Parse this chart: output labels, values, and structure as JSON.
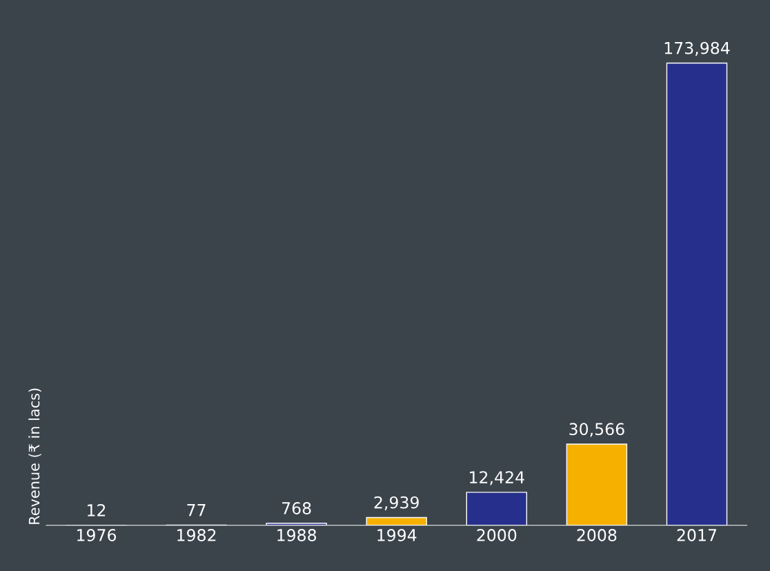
{
  "chart_data": {
    "type": "bar",
    "ylabel": "Revenue (₹ in lacs)",
    "categories": [
      "1976",
      "1982",
      "1988",
      "1994",
      "2000",
      "2008",
      "2017"
    ],
    "values": [
      12,
      77,
      768,
      2939,
      12424,
      30566,
      173984
    ],
    "colors": [
      "#26308c",
      "#f5b000",
      "#26308c",
      "#f5b000",
      "#26308c",
      "#f5b000",
      "#26308c"
    ],
    "value_labels": [
      "12",
      "77",
      "768",
      "2,939",
      "12,424",
      "30,566",
      "173,984"
    ],
    "grid": false,
    "legend": false
  }
}
